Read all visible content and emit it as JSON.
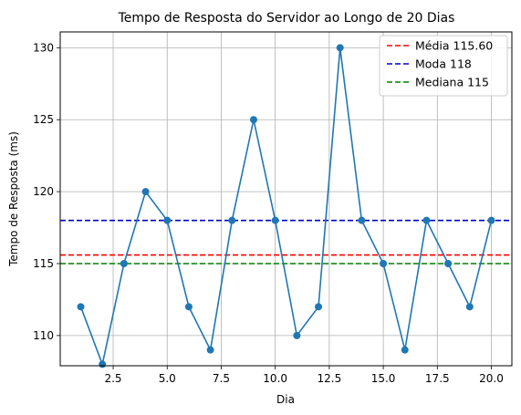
{
  "chart_data": {
    "type": "line",
    "title": "Tempo de Resposta do Servidor ao Longo de 20 Dias",
    "xlabel": "Dia",
    "ylabel": "Tempo de Resposta (ms)",
    "x": [
      1,
      2,
      3,
      4,
      5,
      6,
      7,
      8,
      9,
      10,
      11,
      12,
      13,
      14,
      15,
      16,
      17,
      18,
      19,
      20
    ],
    "series": [
      {
        "values": [
          112,
          108,
          115,
          120,
          118,
          112,
          109,
          118,
          125,
          118,
          110,
          112,
          130,
          118,
          115,
          109,
          118,
          115,
          112,
          118
        ],
        "color": "#1f77b4"
      }
    ],
    "reference_lines": [
      {
        "label": "Média 115.60",
        "value": 115.6,
        "color": "#ff0000"
      },
      {
        "label": "Moda 118",
        "value": 118,
        "color": "#0000cc"
      },
      {
        "label": "Mediana 115",
        "value": 115,
        "color": "#008000"
      }
    ],
    "xlim": [
      0.05,
      20.95
    ],
    "ylim": [
      107.9,
      131.1
    ],
    "xticks": [
      2.5,
      5.0,
      7.5,
      10.0,
      12.5,
      15.0,
      17.5,
      20.0
    ],
    "xtick_labels": [
      "2.5",
      "5.0",
      "7.5",
      "10.0",
      "12.5",
      "15.0",
      "17.5",
      "20.0"
    ],
    "yticks": [
      110,
      115,
      120,
      125,
      130
    ],
    "ytick_labels": [
      "110",
      "115",
      "120",
      "125",
      "130"
    ],
    "grid": true,
    "legend_position": "top-right"
  }
}
